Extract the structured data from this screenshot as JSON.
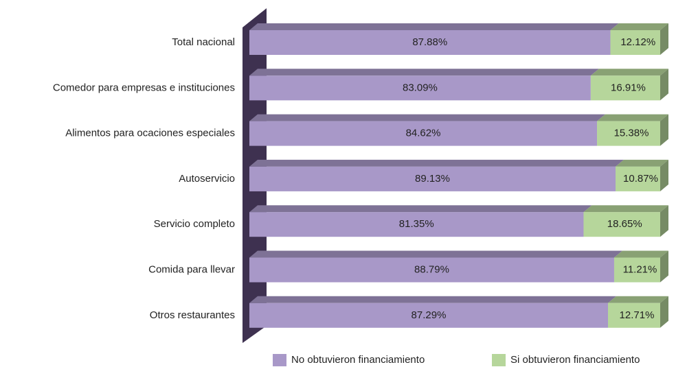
{
  "chart_data": {
    "type": "stacked-bar-horizontal-3d",
    "categories": [
      "Total nacional",
      "Comedor para empresas e instituciones",
      "Alimentos para ocaciones especiales",
      "Autoservicio",
      "Servicio completo",
      "Comida para llevar",
      "Otros restaurantes"
    ],
    "series": [
      {
        "name": "No obtuvieron financiamiento",
        "color": "#a898c8",
        "values": [
          87.88,
          83.09,
          84.62,
          89.13,
          81.35,
          88.79,
          87.29
        ],
        "value_labels": [
          "87.88%",
          "83.09%",
          "84.62%",
          "89.13%",
          "81.35%",
          "88.79%",
          "87.29%"
        ]
      },
      {
        "name": "Si obtuvieron financiamiento",
        "color": "#b6d69b",
        "values": [
          12.12,
          16.91,
          15.38,
          10.87,
          18.65,
          11.21,
          12.71
        ],
        "value_labels": [
          "12.12%",
          "16.91%",
          "15.38%",
          "10.87%",
          "18.65%",
          "11.21%",
          "12.71%"
        ]
      }
    ],
    "legend": "bottom"
  }
}
